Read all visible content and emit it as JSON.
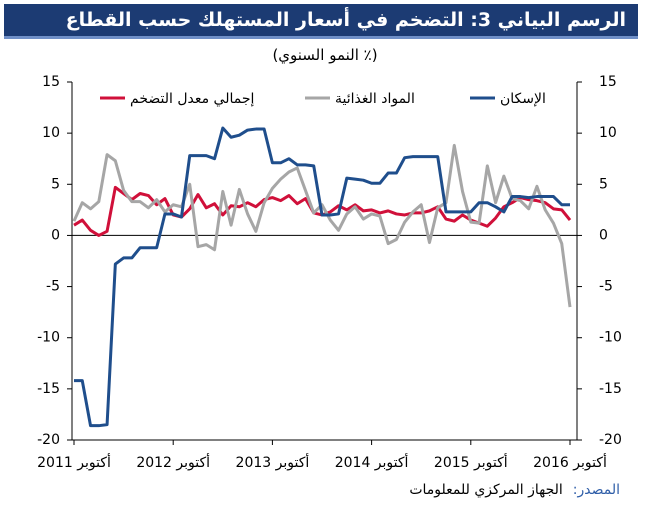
{
  "chart_data": {
    "type": "line",
    "title": "الرسم البياني 3: التضخم في أسعار المستهلك حسب القطاع",
    "subtitle": "(٪ النمو السنوي)",
    "source_label": "المصدر:",
    "source": "الجهاز المركزي للمعلومات",
    "categories": [
      "أكتوبر 2011",
      null,
      null,
      null,
      null,
      null,
      null,
      null,
      null,
      null,
      null,
      null,
      "أكتوبر 2012",
      null,
      null,
      null,
      null,
      null,
      null,
      null,
      null,
      null,
      null,
      null,
      "أكتوبر 2013",
      null,
      null,
      null,
      null,
      null,
      null,
      null,
      null,
      null,
      null,
      null,
      "أكتوبر 2014",
      null,
      null,
      null,
      null,
      null,
      null,
      null,
      null,
      null,
      null,
      null,
      "أكتوبر 2015",
      null,
      null,
      null,
      null,
      null,
      null,
      null,
      null,
      null,
      null,
      null,
      "أكتوبر 2016"
    ],
    "series": [
      {
        "name": "إجمالي معدل التضخم",
        "color": "#d0103a",
        "values": [
          1.0,
          1.5,
          0.5,
          0.0,
          0.4,
          4.7,
          4.1,
          3.5,
          4.1,
          3.9,
          3.0,
          3.6,
          2.0,
          1.8,
          2.6,
          4.0,
          2.7,
          3.1,
          2.0,
          2.9,
          2.8,
          3.2,
          2.8,
          3.5,
          3.7,
          3.4,
          3.9,
          3.1,
          3.6,
          2.2,
          2.0,
          2.3,
          2.9,
          2.5,
          3.0,
          2.4,
          2.5,
          2.2,
          2.4,
          2.1,
          2.0,
          2.2,
          2.2,
          2.4,
          2.8,
          1.6,
          1.4,
          2.0,
          1.5,
          1.2,
          0.9,
          1.7,
          2.8,
          3.2,
          3.7,
          3.5,
          3.4,
          3.2,
          2.6,
          2.5,
          1.5
        ]
      },
      {
        "name": "المواد الغذائية",
        "color": "#a6a6a6",
        "values": [
          1.4,
          3.2,
          2.6,
          3.3,
          7.9,
          7.3,
          4.4,
          3.3,
          3.3,
          2.7,
          3.5,
          2.3,
          3.0,
          2.8,
          5.0,
          -1.1,
          -0.9,
          -1.4,
          4.3,
          1.0,
          4.5,
          2.1,
          0.4,
          3.2,
          4.6,
          5.5,
          6.2,
          6.6,
          4.4,
          2.2,
          3.0,
          1.5,
          0.5,
          2.1,
          2.8,
          1.6,
          2.1,
          1.9,
          -0.8,
          -0.4,
          1.3,
          2.3,
          3.0,
          -0.7,
          2.7,
          3.2,
          8.8,
          4.3,
          1.3,
          1.2,
          6.8,
          3.2,
          5.8,
          3.6,
          3.4,
          2.6,
          4.8,
          2.5,
          1.2,
          -0.8,
          -7.0
        ]
      },
      {
        "name": "الإسكان",
        "color": "#1f4e8c",
        "values": [
          -14.2,
          -14.2,
          -18.6,
          -18.6,
          -18.5,
          -2.8,
          -2.2,
          -2.2,
          -1.2,
          -1.2,
          -1.2,
          2.1,
          2.1,
          1.8,
          7.8,
          7.8,
          7.8,
          7.5,
          10.5,
          9.6,
          9.8,
          10.3,
          10.4,
          10.4,
          7.1,
          7.1,
          7.5,
          6.9,
          6.9,
          6.8,
          2.0,
          2.0,
          2.1,
          5.6,
          5.5,
          5.4,
          5.1,
          5.1,
          6.1,
          6.1,
          7.6,
          7.7,
          7.7,
          7.7,
          7.7,
          2.3,
          2.3,
          2.3,
          2.3,
          3.2,
          3.2,
          2.8,
          2.3,
          3.8,
          3.8,
          3.7,
          3.8,
          3.8,
          3.8,
          3.0,
          3.0
        ]
      }
    ],
    "ylim": [
      -20,
      15
    ],
    "yticks": [
      15,
      10,
      5,
      0,
      -5,
      -10,
      -15,
      -20
    ],
    "y2lim": [
      -20,
      15
    ],
    "y2ticks": [
      15,
      10,
      5,
      0,
      -5,
      -10,
      -15,
      -20
    ]
  }
}
